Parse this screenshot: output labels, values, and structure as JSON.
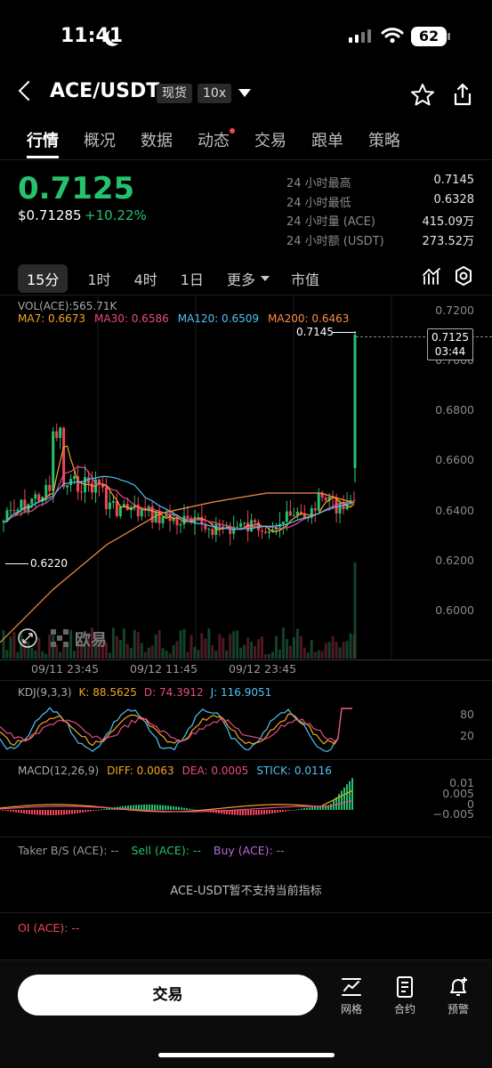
{
  "status": {
    "time": "11:41",
    "battery": "62"
  },
  "header": {
    "pair": "ACE/USDT",
    "badge_spot": "现货",
    "badge_leverage": "10x"
  },
  "tabs": [
    "行情",
    "概况",
    "数据",
    "动态",
    "交易",
    "跟单",
    "策略"
  ],
  "ticker": {
    "price": "0.7125",
    "price_usd": "$0.71285",
    "change": "+10.22%",
    "stats": [
      {
        "label": "24 小时最高",
        "value": "0.7145"
      },
      {
        "label": "24 小时最低",
        "value": "0.6328"
      },
      {
        "label": "24 小时量 (ACE)",
        "value": "415.09万"
      },
      {
        "label": "24 小时额 (USDT)",
        "value": "273.52万"
      }
    ]
  },
  "intervals": [
    "15分",
    "1时",
    "4时",
    "1日",
    "更多",
    "市值"
  ],
  "main_chart": {
    "vol_label": "VOL(ACE):565.71K",
    "ma": [
      {
        "label": "MA7: 0.6673",
        "color": "#f5a623"
      },
      {
        "label": "MA30: 0.6586",
        "color": "#e84a8a"
      },
      {
        "label": "MA120: 0.6509",
        "color": "#4fc3f7"
      },
      {
        "label": "MA200: 0.6463",
        "color": "#ff8c42"
      }
    ],
    "y_ticks": [
      "0.7200",
      "0.7000",
      "0.6800",
      "0.6600",
      "0.6400",
      "0.6200",
      "0.6000"
    ],
    "high_marker": "0.7145",
    "low_marker": "0.6220",
    "last_price": "0.7125",
    "countdown": "03:44",
    "x_ticks": [
      "09/11 23:45",
      "09/12 11:45",
      "09/12 23:45"
    ],
    "watermark": "欧易"
  },
  "kdj": {
    "title": "KDJ(9,3,3)",
    "k": "K: 88.5625",
    "d": "D: 74.3912",
    "j": "J: 116.9051",
    "ticks": [
      "80",
      "20"
    ]
  },
  "macd": {
    "title": "MACD(12,26,9)",
    "diff": "DIFF: 0.0063",
    "dea": "DEA: 0.0005",
    "stick": "STICK: 0.0116",
    "ticks": [
      "0.01",
      "0.005",
      "0",
      "−0.005"
    ]
  },
  "taker": {
    "title": "Taker B/S (ACE): --",
    "sell": "Sell (ACE): --",
    "buy": "Buy (ACE): --",
    "notice": "ACE-USDT暂不支持当前指标"
  },
  "oi": {
    "title": "OI (ACE): --"
  },
  "bottom": {
    "trade": "交易",
    "items": [
      "网格",
      "合约",
      "预警"
    ]
  },
  "colors": {
    "up": "#25c26e",
    "down": "#f0455b",
    "accent": "#ffffff"
  }
}
